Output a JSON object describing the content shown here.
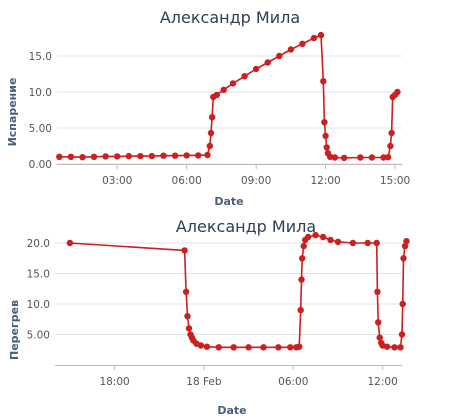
{
  "colors": {
    "series": "#cc1f1f",
    "grid": "#e3e3e3",
    "title": "#2f3e52",
    "axis_label": "#4a5f7a"
  },
  "chart_data": [
    {
      "type": "line",
      "title": "Александр Мила",
      "xlabel": "Date",
      "ylabel": "Испарение",
      "x_unit": "hours",
      "xlim": [
        0.4,
        15.3
      ],
      "ylim": [
        0,
        17.5
      ],
      "yticks": [
        0,
        5,
        10,
        15
      ],
      "ytick_labels": [
        "0.00",
        "5.00",
        "10.0",
        "15.0"
      ],
      "xticks": [
        3,
        6,
        9,
        12,
        15
      ],
      "xtick_labels": [
        "03:00",
        "06:00",
        "09:00",
        "12:00",
        "15:00"
      ],
      "grid": true,
      "series": [
        {
          "color": "#cc1f1f",
          "x": [
            0.5,
            1.0,
            1.5,
            2.0,
            2.5,
            3.0,
            3.5,
            4.0,
            4.5,
            5.0,
            5.5,
            6.0,
            6.5,
            6.9,
            7.0,
            7.05,
            7.1,
            7.15,
            7.3,
            7.6,
            8.0,
            8.5,
            9.0,
            9.5,
            10.0,
            10.5,
            11.0,
            11.5,
            11.8,
            11.9,
            11.95,
            12.0,
            12.05,
            12.1,
            12.2,
            12.4,
            12.8,
            13.5,
            14.0,
            14.5,
            14.7,
            14.8,
            14.85,
            14.9,
            15.0,
            15.1
          ],
          "values": [
            1.0,
            1.0,
            0.95,
            1.0,
            1.05,
            1.05,
            1.1,
            1.1,
            1.1,
            1.15,
            1.15,
            1.2,
            1.2,
            1.25,
            2.5,
            4.3,
            6.5,
            9.3,
            9.6,
            10.3,
            11.2,
            12.2,
            13.2,
            14.1,
            15.0,
            15.9,
            16.7,
            17.5,
            17.9,
            11.5,
            5.8,
            3.9,
            2.3,
            1.5,
            1.0,
            0.9,
            0.85,
            0.9,
            0.9,
            0.9,
            0.95,
            2.5,
            4.3,
            9.3,
            9.6,
            10.0
          ]
        }
      ]
    },
    {
      "type": "line",
      "title": "Александр Мила",
      "xlabel": "Date",
      "ylabel": "Перегрев",
      "x_unit": "hours from 17 Feb 14:00",
      "xlim": [
        0.0,
        23.3
      ],
      "ylim": [
        0,
        20.5
      ],
      "yticks": [
        5,
        10,
        15,
        20
      ],
      "ytick_labels": [
        "5.00",
        "10.0",
        "15.0",
        "20.0"
      ],
      "xticks": [
        4,
        10,
        16,
        22
      ],
      "xtick_labels": [
        "18:00",
        "18 Feb",
        "06:00",
        "12:00"
      ],
      "grid": true,
      "series": [
        {
          "color": "#cc1f1f",
          "x": [
            1.0,
            8.7,
            8.8,
            8.9,
            9.0,
            9.1,
            9.2,
            9.3,
            9.5,
            9.8,
            10.2,
            11.0,
            12.0,
            13.0,
            14.0,
            15.0,
            15.8,
            16.2,
            16.4,
            16.5,
            16.55,
            16.6,
            16.7,
            16.8,
            17.0,
            17.5,
            18.0,
            18.5,
            19.0,
            20.0,
            21.0,
            21.6,
            21.65,
            21.7,
            21.8,
            21.9,
            22.0,
            22.3,
            22.8,
            23.2,
            23.3,
            23.35,
            23.4,
            23.5,
            23.6
          ],
          "values": [
            20.0,
            18.8,
            12.0,
            8.0,
            6.0,
            5.0,
            4.5,
            4.0,
            3.5,
            3.2,
            3.0,
            2.9,
            2.9,
            2.9,
            2.9,
            2.9,
            2.9,
            2.9,
            3.0,
            9.0,
            14.0,
            17.5,
            19.5,
            20.5,
            21.0,
            21.3,
            21.0,
            20.5,
            20.2,
            20.0,
            20.0,
            20.0,
            12.0,
            7.0,
            4.5,
            3.6,
            3.2,
            3.0,
            2.9,
            2.9,
            5.0,
            10.0,
            17.5,
            19.5,
            20.3
          ]
        }
      ]
    }
  ]
}
